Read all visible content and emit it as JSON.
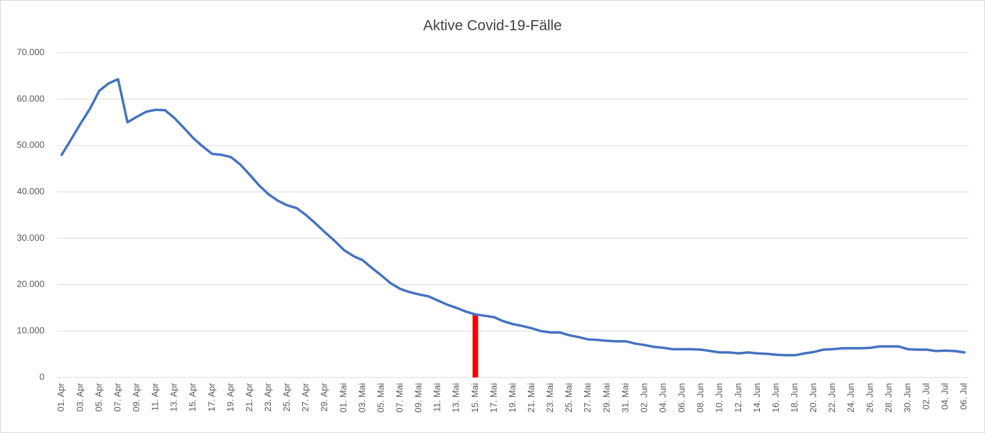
{
  "chart_data": {
    "type": "line",
    "title": "Aktive Covid-19-Fälle",
    "categories": [
      "01. Apr",
      null,
      "03. Apr",
      null,
      "05. Apr",
      null,
      "07. Apr",
      null,
      "09. Apr",
      null,
      "11. Apr",
      null,
      "13. Apr",
      null,
      "15. Apr",
      null,
      "17. Apr",
      null,
      "19. Apr",
      null,
      "21. Apr",
      null,
      "23. Apr",
      null,
      "25. Apr",
      null,
      "27. Apr",
      null,
      "29. Apr",
      null,
      "01. Mai",
      null,
      "03. Mai",
      null,
      "05. Mai",
      null,
      "07. Mai",
      null,
      "09. Mai",
      null,
      "11. Mai",
      null,
      "13. Mai",
      null,
      "15. Mai",
      null,
      "17. Mai",
      null,
      "19. Mai",
      null,
      "21. Mai",
      null,
      "23. Mai",
      null,
      "25. Mai",
      null,
      "27. Mai",
      null,
      "29. Mai",
      null,
      "31. Mai",
      null,
      "02. Jun",
      null,
      "04. Jun",
      null,
      "06. Jun",
      null,
      "08. Jun",
      null,
      "10. Jun",
      null,
      "12. Jun",
      null,
      "14. Jun",
      null,
      "16. Jun",
      null,
      "18. Jun",
      null,
      "20. Jun",
      null,
      "22. Jun",
      null,
      "24. Jun",
      null,
      "26. Jun",
      null,
      "28. Jun",
      null,
      "30. Jun",
      null,
      "02. Jul",
      null,
      "04. Jul",
      null,
      "06. Jul"
    ],
    "series": [
      {
        "color": "#ff0000",
        "type": "bar",
        "values": [
          null,
          null,
          null,
          null,
          null,
          null,
          null,
          null,
          null,
          null,
          null,
          null,
          null,
          null,
          null,
          null,
          null,
          null,
          null,
          null,
          null,
          null,
          null,
          null,
          null,
          null,
          null,
          null,
          null,
          null,
          null,
          null,
          null,
          null,
          null,
          null,
          null,
          null,
          null,
          null,
          null,
          null,
          null,
          null,
          13600,
          null,
          null,
          null,
          null,
          null,
          null,
          null,
          null,
          null,
          null,
          null,
          null,
          null,
          null,
          null,
          null,
          null,
          null,
          null,
          null,
          null,
          null,
          null,
          null,
          null,
          null,
          null,
          null,
          null,
          null,
          null,
          null,
          null,
          null,
          null,
          null,
          null,
          null,
          null,
          null,
          null,
          null,
          null,
          null,
          null,
          null,
          null,
          null,
          null,
          null,
          null,
          null
        ]
      },
      {
        "color": "#4472c4",
        "type": "line",
        "values": [
          48000,
          51300,
          54700,
          57900,
          61800,
          63400,
          64300,
          55000,
          56200,
          57300,
          57700,
          57600,
          55900,
          53800,
          51600,
          49800,
          48200,
          48000,
          47500,
          45900,
          43700,
          41400,
          39500,
          38100,
          37100,
          36500,
          35000,
          33200,
          31300,
          29500,
          27500,
          26200,
          25300,
          23600,
          22000,
          20300,
          19100,
          18400,
          17900,
          17500,
          16600,
          15700,
          15000,
          14200,
          13600,
          13300,
          13000,
          12100,
          11500,
          11100,
          10600,
          10000,
          9700,
          9700,
          9100,
          8700,
          8200,
          8100,
          7900,
          7800,
          7800,
          7300,
          7000,
          6600,
          6400,
          6100,
          6100,
          6100,
          6000,
          5700,
          5400,
          5400,
          5200,
          5400,
          5200,
          5100,
          4900,
          4800,
          4800,
          5200,
          5500,
          6000,
          6100,
          6300,
          6300,
          6300,
          6400,
          6700,
          6700,
          6700,
          6100,
          6000,
          6000,
          5700,
          5800,
          5700,
          5400
        ]
      }
    ],
    "ylim": [
      0,
      70000
    ],
    "yticks": [
      0,
      {
        "value": 10000,
        "label": "10.000"
      },
      {
        "value": 20000,
        "label": "20.000"
      },
      {
        "value": 30000,
        "label": "30.000"
      },
      {
        "value": 40000,
        "label": "40.000"
      },
      {
        "value": 50000,
        "label": "50.000"
      },
      {
        "value": 60000,
        "label": "60.000"
      },
      {
        "value": 70000,
        "label": "70.000"
      }
    ],
    "grid": true
  }
}
